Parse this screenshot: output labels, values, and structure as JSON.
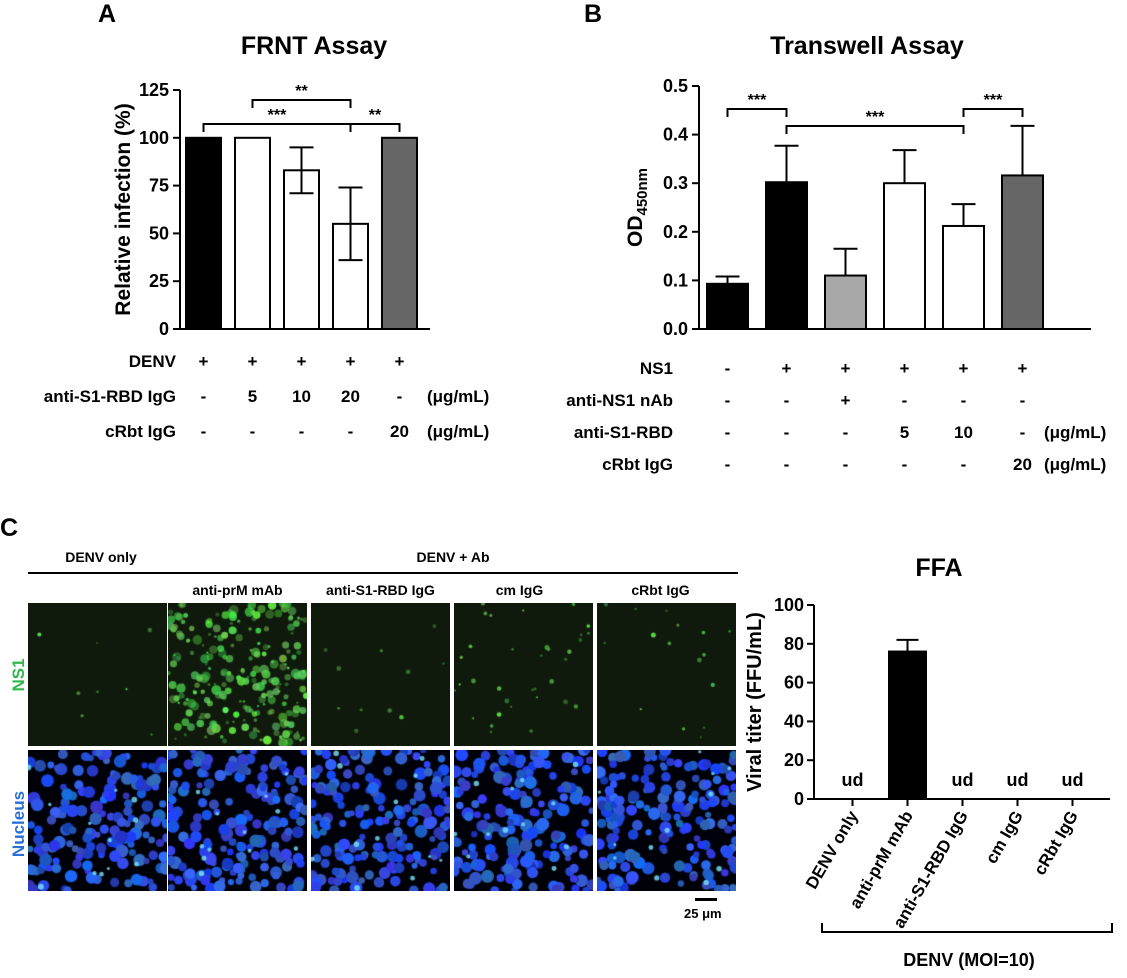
{
  "panel_labels": {
    "a": "A",
    "b": "B",
    "c": "C"
  },
  "chart_data": [
    {
      "type": "bar",
      "title": "FRNT Assay",
      "ylabel": "Relative infection (%)",
      "xlabel": "",
      "ylim": [
        0,
        125
      ],
      "yticks": [
        "0",
        "25",
        "50",
        "75",
        "100",
        "125"
      ],
      "categories": [
        "1",
        "2",
        "3",
        "4",
        "5"
      ],
      "values": [
        100,
        100,
        83,
        55,
        100
      ],
      "errors": [
        0,
        0,
        12,
        19,
        0
      ],
      "colors": [
        "#000000",
        "#ffffff",
        "#ffffff",
        "#ffffff",
        "#666666"
      ],
      "significance": [
        {
          "label": "**",
          "from": 2,
          "to": 4
        },
        {
          "label": "***",
          "from": 1,
          "to": 4
        },
        {
          "label": "**",
          "from": 4,
          "to": 5
        }
      ],
      "conditions": [
        {
          "label": "DENV",
          "values": [
            "+",
            "+",
            "+",
            "+",
            "+"
          ],
          "unit": ""
        },
        {
          "label": "anti-S1-RBD IgG",
          "values": [
            "-",
            "5",
            "10",
            "20",
            "-"
          ],
          "unit": "(μg/mL)"
        },
        {
          "label": "cRbt IgG",
          "values": [
            "-",
            "-",
            "-",
            "-",
            "20"
          ],
          "unit": "(μg/mL)"
        }
      ]
    },
    {
      "type": "bar",
      "title": "Transwell Assay",
      "ylabel": "OD",
      "ylabel_sub": "450nm",
      "xlabel": "",
      "ylim": [
        0,
        0.5
      ],
      "yticks": [
        "0.0",
        "0.1",
        "0.2",
        "0.3",
        "0.4",
        "0.5"
      ],
      "categories": [
        "1",
        "2",
        "3",
        "4",
        "5",
        "6"
      ],
      "values": [
        0.093,
        0.302,
        0.11,
        0.3,
        0.212,
        0.316
      ],
      "errors": [
        0.015,
        0.075,
        0.055,
        0.068,
        0.045,
        0.102
      ],
      "colors": [
        "#000000",
        "#000000",
        "#a8a8a8",
        "#ffffff",
        "#ffffff",
        "#666666"
      ],
      "significance": [
        {
          "label": "***",
          "from": 1,
          "to": 2
        },
        {
          "label": "***",
          "from": 2,
          "to": 5
        },
        {
          "label": "***",
          "from": 5,
          "to": 6
        }
      ],
      "conditions": [
        {
          "label": "NS1",
          "values": [
            "-",
            "+",
            "+",
            "+",
            "+",
            "+"
          ],
          "unit": ""
        },
        {
          "label": "anti-NS1 nAb",
          "values": [
            "-",
            "-",
            "+",
            "-",
            "-",
            "-"
          ],
          "unit": ""
        },
        {
          "label": "anti-S1-RBD",
          "values": [
            "-",
            "-",
            "-",
            "5",
            "10",
            "-"
          ],
          "unit": "(μg/mL)"
        },
        {
          "label": "cRbt IgG",
          "values": [
            "-",
            "-",
            "-",
            "-",
            "-",
            "20"
          ],
          "unit": "(μg/mL)"
        }
      ]
    },
    {
      "type": "bar",
      "title": "FFA",
      "ylabel": "Viral titer (FFU/mL)",
      "xlabel": "DENV (MOI=10)",
      "ylim": [
        0,
        100
      ],
      "yticks": [
        "0",
        "20",
        "40",
        "60",
        "80",
        "100"
      ],
      "categories": [
        "DENV only",
        "anti-prM mAb",
        "anti-S1-RBD IgG",
        "cm IgG",
        "cRbt IgG"
      ],
      "values": [
        0,
        76,
        0,
        0,
        0
      ],
      "errors": [
        0,
        6,
        0,
        0,
        0
      ],
      "bar_labels": [
        "ud",
        "",
        "ud",
        "ud",
        "ud"
      ],
      "colors": [
        "#000000",
        "#000000",
        "#000000",
        "#000000",
        "#000000"
      ]
    }
  ],
  "microscopy": {
    "group_denv_only": "DENV only",
    "group_denv_ab": "DENV + Ab",
    "columns": [
      "anti-prM mAb",
      "anti-S1-RBD IgG",
      "cm IgG",
      "cRbt IgG"
    ],
    "row_labels": [
      "NS1",
      "Nucleus"
    ],
    "row_label_colors": [
      "#2db84a",
      "#2a6fd6"
    ],
    "scale_bar": "25 μm",
    "ns1_intensity": [
      0.02,
      0.9,
      0.03,
      0.12,
      0.05
    ]
  }
}
